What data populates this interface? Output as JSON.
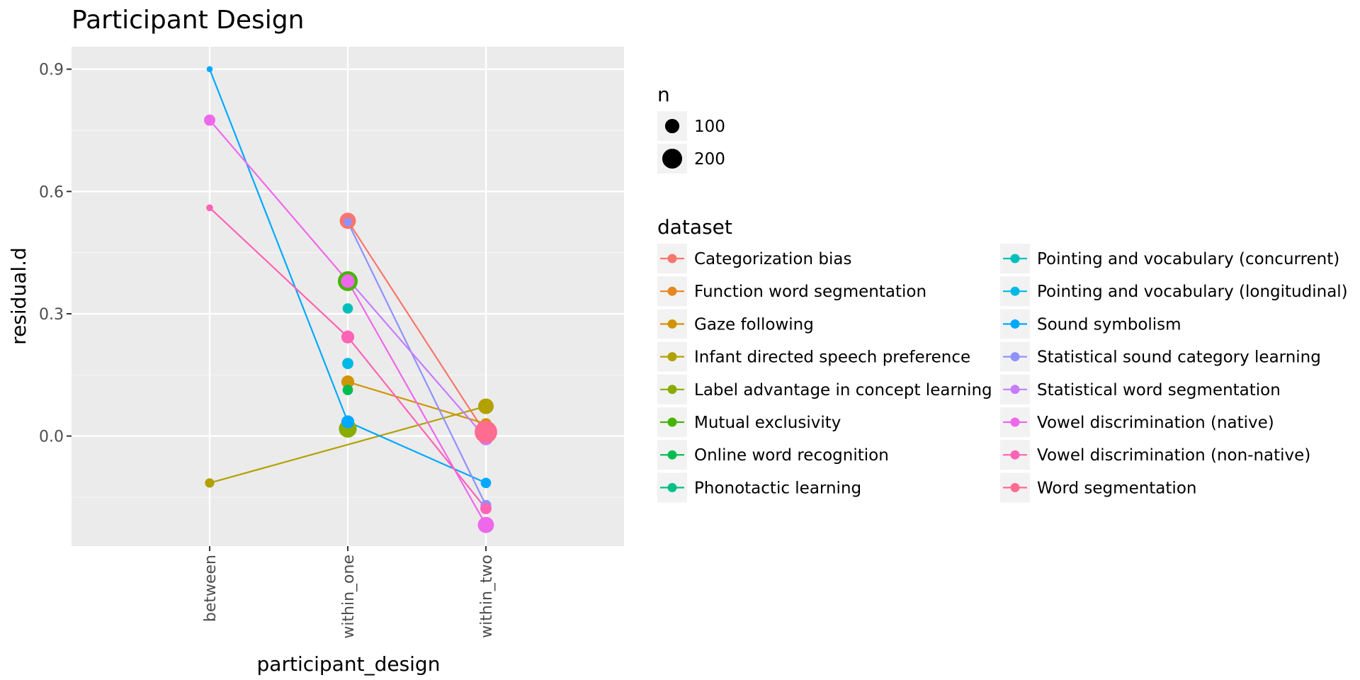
{
  "chart_data": {
    "type": "scatter",
    "title": "Participant Design",
    "xlabel": "participant_design",
    "ylabel": "residual.d",
    "categories": [
      "between",
      "within_one",
      "within_two"
    ],
    "ylim": [
      -0.27,
      0.955
    ],
    "yticks": [
      0.0,
      0.3,
      0.6,
      0.9
    ],
    "ytick_labels": [
      "0.0",
      "0.3",
      "0.6",
      "0.9"
    ],
    "grid": true,
    "legend_position": "right",
    "size_legend": {
      "title": "n",
      "items": [
        {
          "label": "100",
          "n": 100
        },
        {
          "label": "200",
          "n": 200
        }
      ]
    },
    "color_legend_title": "dataset",
    "series": [
      {
        "name": "Categorization bias",
        "color": "#F8766D",
        "points": [
          {
            "x": "within_one",
            "y": 0.528,
            "n": 130
          },
          {
            "x": "within_two",
            "y": 0.005,
            "n": 80
          }
        ]
      },
      {
        "name": "Function word segmentation",
        "color": "#E7851E",
        "points": [
          {
            "x": "within_two",
            "y": 0.02,
            "n": 90
          }
        ]
      },
      {
        "name": "Gaze following",
        "color": "#D09400",
        "points": [
          {
            "x": "within_one",
            "y": 0.133,
            "n": 80
          },
          {
            "x": "within_two",
            "y": 0.03,
            "n": 60
          }
        ]
      },
      {
        "name": "Infant directed speech preference",
        "color": "#B2A100",
        "points": [
          {
            "x": "between",
            "y": -0.115,
            "n": 40
          },
          {
            "x": "within_two",
            "y": 0.073,
            "n": 120
          }
        ]
      },
      {
        "name": "Label advantage in concept learning",
        "color": "#89AC00",
        "points": [
          {
            "x": "within_one",
            "y": 0.018,
            "n": 160
          }
        ]
      },
      {
        "name": "Mutual exclusivity",
        "color": "#45B500",
        "points": [
          {
            "x": "within_one",
            "y": 0.38,
            "n": 200
          }
        ]
      },
      {
        "name": "Online word recognition",
        "color": "#00BC51",
        "points": [
          {
            "x": "within_one",
            "y": 0.113,
            "n": 50
          }
        ]
      },
      {
        "name": "Phonotactic learning",
        "color": "#00C087",
        "points": [
          {
            "x": "within_two",
            "y": 0.0,
            "n": 40
          }
        ]
      },
      {
        "name": "Pointing and vocabulary (concurrent)",
        "color": "#00BFBB",
        "points": [
          {
            "x": "within_one",
            "y": 0.313,
            "n": 50
          }
        ]
      },
      {
        "name": "Pointing and vocabulary (longitudinal)",
        "color": "#00B8E5",
        "points": [
          {
            "x": "within_one",
            "y": 0.178,
            "n": 60
          }
        ]
      },
      {
        "name": "Sound symbolism",
        "color": "#00A9FF",
        "points": [
          {
            "x": "between",
            "y": 0.9,
            "n": 15
          },
          {
            "x": "within_one",
            "y": 0.035,
            "n": 80
          },
          {
            "x": "within_two",
            "y": -0.115,
            "n": 50
          }
        ]
      },
      {
        "name": "Statistical sound category learning",
        "color": "#8F91FF",
        "points": [
          {
            "x": "within_one",
            "y": 0.525,
            "n": 30
          },
          {
            "x": "within_two",
            "y": -0.17,
            "n": 55
          }
        ]
      },
      {
        "name": "Statistical word segmentation",
        "color": "#C77CFF",
        "points": [
          {
            "x": "within_one",
            "y": 0.385,
            "n": 40
          },
          {
            "x": "within_two",
            "y": -0.005,
            "n": 100
          }
        ]
      },
      {
        "name": "Vowel discrimination (native)",
        "color": "#EF67EB",
        "points": [
          {
            "x": "between",
            "y": 0.775,
            "n": 60
          },
          {
            "x": "within_one",
            "y": 0.38,
            "n": 90
          },
          {
            "x": "within_two",
            "y": -0.218,
            "n": 130
          }
        ]
      },
      {
        "name": "Vowel discrimination (non-native)",
        "color": "#FF63B6",
        "points": [
          {
            "x": "between",
            "y": 0.56,
            "n": 20
          },
          {
            "x": "within_one",
            "y": 0.243,
            "n": 80
          },
          {
            "x": "within_two",
            "y": -0.178,
            "n": 60
          }
        ]
      },
      {
        "name": "Word segmentation",
        "color": "#FF6C91",
        "points": [
          {
            "x": "within_two",
            "y": 0.01,
            "n": 260
          }
        ]
      }
    ]
  }
}
